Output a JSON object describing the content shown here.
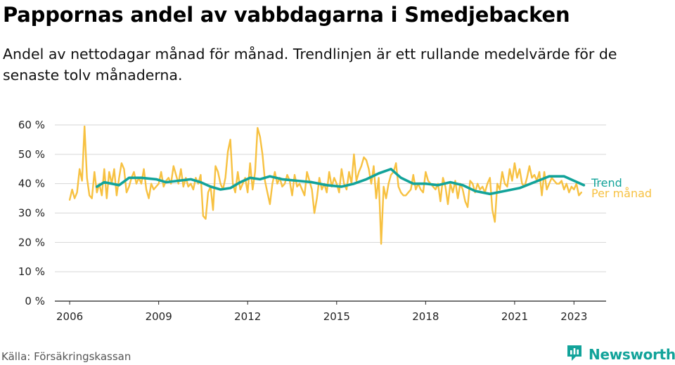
{
  "title": "Pappornas andel av vabbdagarna i Smedjebacken",
  "subtitle": "Andel av nettodagar månad för månad. Trendlinjen är ett rullande medelvärde för de senaste tolv månaderna.",
  "source": "Källa: Försäkringskassan",
  "brand": {
    "name": "Newsworthy",
    "icon": "newsworthy-logo-icon",
    "color": "#12a39a"
  },
  "chart_data": {
    "type": "line",
    "title": "Pappornas andel av vabbdagarna i Smedjebacken",
    "xlabel": "",
    "ylabel": "",
    "x_ticks": [
      "2006",
      "2009",
      "2012",
      "2015",
      "2018",
      "2021",
      "2023"
    ],
    "y_ticks": [
      "0 %",
      "10 %",
      "20 %",
      "30 %",
      "40 %",
      "50 %",
      "60 %"
    ],
    "ylim": [
      0,
      60
    ],
    "xlim": [
      "2005-07",
      "2024-02"
    ],
    "grid": "horizontal",
    "legend": "right-end labels",
    "series": [
      {
        "name": "Trend",
        "color": "#12a39a",
        "points": [
          [
            "2006-12",
            39
          ],
          [
            "2007-03",
            40.5
          ],
          [
            "2007-06",
            40
          ],
          [
            "2007-09",
            39.5
          ],
          [
            "2008-01",
            42
          ],
          [
            "2008-06",
            42
          ],
          [
            "2008-12",
            41.5
          ],
          [
            "2009-04",
            40.5
          ],
          [
            "2009-09",
            41
          ],
          [
            "2010-02",
            41.5
          ],
          [
            "2010-06",
            40.5
          ],
          [
            "2010-10",
            39
          ],
          [
            "2011-02",
            38
          ],
          [
            "2011-06",
            38.5
          ],
          [
            "2011-10",
            40.5
          ],
          [
            "2012-02",
            42
          ],
          [
            "2012-06",
            41.5
          ],
          [
            "2012-10",
            42.5
          ],
          [
            "2013-03",
            41.5
          ],
          [
            "2013-09",
            41
          ],
          [
            "2014-03",
            40.5
          ],
          [
            "2014-09",
            39.5
          ],
          [
            "2015-03",
            39
          ],
          [
            "2015-08",
            40
          ],
          [
            "2016-01",
            41.5
          ],
          [
            "2016-06",
            43.5
          ],
          [
            "2016-11",
            45
          ],
          [
            "2017-03",
            42
          ],
          [
            "2017-08",
            40
          ],
          [
            "2018-01",
            40
          ],
          [
            "2018-06",
            39.5
          ],
          [
            "2018-11",
            40.5
          ],
          [
            "2019-04",
            39.5
          ],
          [
            "2019-09",
            37.5
          ],
          [
            "2020-03",
            36.5
          ],
          [
            "2020-09",
            37.5
          ],
          [
            "2021-03",
            38.5
          ],
          [
            "2021-09",
            40.5
          ],
          [
            "2022-03",
            42.5
          ],
          [
            "2022-09",
            42.5
          ],
          [
            "2023-01",
            41
          ],
          [
            "2023-05",
            39.5
          ]
        ]
      },
      {
        "name": "Per månad",
        "color": "#f7c141",
        "points": [
          [
            "2006-01",
            34.5
          ],
          [
            "2006-02",
            38
          ],
          [
            "2006-03",
            35
          ],
          [
            "2006-04",
            37
          ],
          [
            "2006-05",
            45
          ],
          [
            "2006-06",
            41
          ],
          [
            "2006-07",
            59.5
          ],
          [
            "2006-08",
            42
          ],
          [
            "2006-09",
            36
          ],
          [
            "2006-10",
            35
          ],
          [
            "2006-11",
            44
          ],
          [
            "2006-12",
            37
          ],
          [
            "2007-01",
            40
          ],
          [
            "2007-02",
            36
          ],
          [
            "2007-03",
            45
          ],
          [
            "2007-04",
            35
          ],
          [
            "2007-05",
            44
          ],
          [
            "2007-06",
            40
          ],
          [
            "2007-07",
            45
          ],
          [
            "2007-08",
            36
          ],
          [
            "2007-09",
            42
          ],
          [
            "2007-10",
            47
          ],
          [
            "2007-11",
            45
          ],
          [
            "2007-12",
            37
          ],
          [
            "2008-01",
            39
          ],
          [
            "2008-02",
            42
          ],
          [
            "2008-03",
            44
          ],
          [
            "2008-04",
            40
          ],
          [
            "2008-05",
            42
          ],
          [
            "2008-06",
            40
          ],
          [
            "2008-07",
            45
          ],
          [
            "2008-08",
            38
          ],
          [
            "2008-09",
            35
          ],
          [
            "2008-10",
            40
          ],
          [
            "2008-11",
            38
          ],
          [
            "2008-12",
            39
          ],
          [
            "2009-01",
            40
          ],
          [
            "2009-02",
            44
          ],
          [
            "2009-03",
            39
          ],
          [
            "2009-04",
            41
          ],
          [
            "2009-05",
            42
          ],
          [
            "2009-06",
            40
          ],
          [
            "2009-07",
            46
          ],
          [
            "2009-08",
            43
          ],
          [
            "2009-09",
            40
          ],
          [
            "2009-10",
            45
          ],
          [
            "2009-11",
            39
          ],
          [
            "2009-12",
            42
          ],
          [
            "2010-01",
            39
          ],
          [
            "2010-02",
            40
          ],
          [
            "2010-03",
            38
          ],
          [
            "2010-04",
            42
          ],
          [
            "2010-05",
            40
          ],
          [
            "2010-06",
            43
          ],
          [
            "2010-07",
            29
          ],
          [
            "2010-08",
            28
          ],
          [
            "2010-09",
            37
          ],
          [
            "2010-10",
            39
          ],
          [
            "2010-11",
            31
          ],
          [
            "2010-12",
            46
          ],
          [
            "2011-01",
            44
          ],
          [
            "2011-02",
            40
          ],
          [
            "2011-03",
            38
          ],
          [
            "2011-04",
            42
          ],
          [
            "2011-05",
            51
          ],
          [
            "2011-06",
            55
          ],
          [
            "2011-07",
            40
          ],
          [
            "2011-08",
            37
          ],
          [
            "2011-09",
            44
          ],
          [
            "2011-10",
            38
          ],
          [
            "2011-11",
            40
          ],
          [
            "2011-12",
            42
          ],
          [
            "2012-01",
            37
          ],
          [
            "2012-02",
            47
          ],
          [
            "2012-03",
            38
          ],
          [
            "2012-04",
            44
          ],
          [
            "2012-05",
            59
          ],
          [
            "2012-06",
            56
          ],
          [
            "2012-07",
            50
          ],
          [
            "2012-08",
            41
          ],
          [
            "2012-09",
            37
          ],
          [
            "2012-10",
            33
          ],
          [
            "2012-11",
            40
          ],
          [
            "2012-12",
            44
          ],
          [
            "2013-01",
            40
          ],
          [
            "2013-02",
            42
          ],
          [
            "2013-03",
            39
          ],
          [
            "2013-04",
            40
          ],
          [
            "2013-05",
            43
          ],
          [
            "2013-06",
            41
          ],
          [
            "2013-07",
            36
          ],
          [
            "2013-08",
            43
          ],
          [
            "2013-09",
            39
          ],
          [
            "2013-10",
            40
          ],
          [
            "2013-11",
            38
          ],
          [
            "2013-12",
            36
          ],
          [
            "2014-01",
            44
          ],
          [
            "2014-02",
            41
          ],
          [
            "2014-03",
            38
          ],
          [
            "2014-04",
            30
          ],
          [
            "2014-05",
            35
          ],
          [
            "2014-06",
            42
          ],
          [
            "2014-07",
            38
          ],
          [
            "2014-08",
            40
          ],
          [
            "2014-09",
            37
          ],
          [
            "2014-10",
            44
          ],
          [
            "2014-11",
            39
          ],
          [
            "2014-12",
            42
          ],
          [
            "2015-01",
            40
          ],
          [
            "2015-02",
            37
          ],
          [
            "2015-03",
            45
          ],
          [
            "2015-04",
            40
          ],
          [
            "2015-05",
            38
          ],
          [
            "2015-06",
            44
          ],
          [
            "2015-07",
            40
          ],
          [
            "2015-08",
            50
          ],
          [
            "2015-09",
            41
          ],
          [
            "2015-10",
            44
          ],
          [
            "2015-11",
            46
          ],
          [
            "2015-12",
            49
          ],
          [
            "2016-01",
            48
          ],
          [
            "2016-02",
            45
          ],
          [
            "2016-03",
            40
          ],
          [
            "2016-04",
            46
          ],
          [
            "2016-05",
            35
          ],
          [
            "2016-06",
            42
          ],
          [
            "2016-07",
            19.5
          ],
          [
            "2016-08",
            39
          ],
          [
            "2016-09",
            35
          ],
          [
            "2016-10",
            40
          ],
          [
            "2016-11",
            43
          ],
          [
            "2016-12",
            44
          ],
          [
            "2017-01",
            47
          ],
          [
            "2017-02",
            39
          ],
          [
            "2017-03",
            37
          ],
          [
            "2017-04",
            36
          ],
          [
            "2017-05",
            36
          ],
          [
            "2017-06",
            37
          ],
          [
            "2017-07",
            38
          ],
          [
            "2017-08",
            43
          ],
          [
            "2017-09",
            38
          ],
          [
            "2017-10",
            40
          ],
          [
            "2017-11",
            38
          ],
          [
            "2017-12",
            37
          ],
          [
            "2018-01",
            44
          ],
          [
            "2018-02",
            41
          ],
          [
            "2018-03",
            40
          ],
          [
            "2018-04",
            39
          ],
          [
            "2018-05",
            38
          ],
          [
            "2018-06",
            40
          ],
          [
            "2018-07",
            34
          ],
          [
            "2018-08",
            42
          ],
          [
            "2018-09",
            39
          ],
          [
            "2018-10",
            33
          ],
          [
            "2018-11",
            40
          ],
          [
            "2018-12",
            37
          ],
          [
            "2019-01",
            41
          ],
          [
            "2019-02",
            35
          ],
          [
            "2019-03",
            40
          ],
          [
            "2019-04",
            38
          ],
          [
            "2019-05",
            34
          ],
          [
            "2019-06",
            32
          ],
          [
            "2019-07",
            41
          ],
          [
            "2019-08",
            40
          ],
          [
            "2019-09",
            37
          ],
          [
            "2019-10",
            40
          ],
          [
            "2019-11",
            38
          ],
          [
            "2019-12",
            39
          ],
          [
            "2020-01",
            37
          ],
          [
            "2020-02",
            40
          ],
          [
            "2020-03",
            42
          ],
          [
            "2020-04",
            31
          ],
          [
            "2020-05",
            27
          ],
          [
            "2020-06",
            40
          ],
          [
            "2020-07",
            38
          ],
          [
            "2020-08",
            44
          ],
          [
            "2020-09",
            40
          ],
          [
            "2020-10",
            39
          ],
          [
            "2020-11",
            45
          ],
          [
            "2020-12",
            41
          ],
          [
            "2021-01",
            47
          ],
          [
            "2021-02",
            42
          ],
          [
            "2021-03",
            45
          ],
          [
            "2021-04",
            40
          ],
          [
            "2021-05",
            39
          ],
          [
            "2021-06",
            42
          ],
          [
            "2021-07",
            46
          ],
          [
            "2021-08",
            42
          ],
          [
            "2021-09",
            43
          ],
          [
            "2021-10",
            41
          ],
          [
            "2021-11",
            44
          ],
          [
            "2021-12",
            36
          ],
          [
            "2022-01",
            44
          ],
          [
            "2022-02",
            38
          ],
          [
            "2022-03",
            40
          ],
          [
            "2022-04",
            42
          ],
          [
            "2022-05",
            41
          ],
          [
            "2022-06",
            40
          ],
          [
            "2022-07",
            40
          ],
          [
            "2022-08",
            41
          ],
          [
            "2022-09",
            38
          ],
          [
            "2022-10",
            40
          ],
          [
            "2022-11",
            37
          ],
          [
            "2022-12",
            39
          ],
          [
            "2023-01",
            38
          ],
          [
            "2023-02",
            40
          ],
          [
            "2023-03",
            36
          ],
          [
            "2023-04",
            37
          ]
        ]
      }
    ]
  }
}
